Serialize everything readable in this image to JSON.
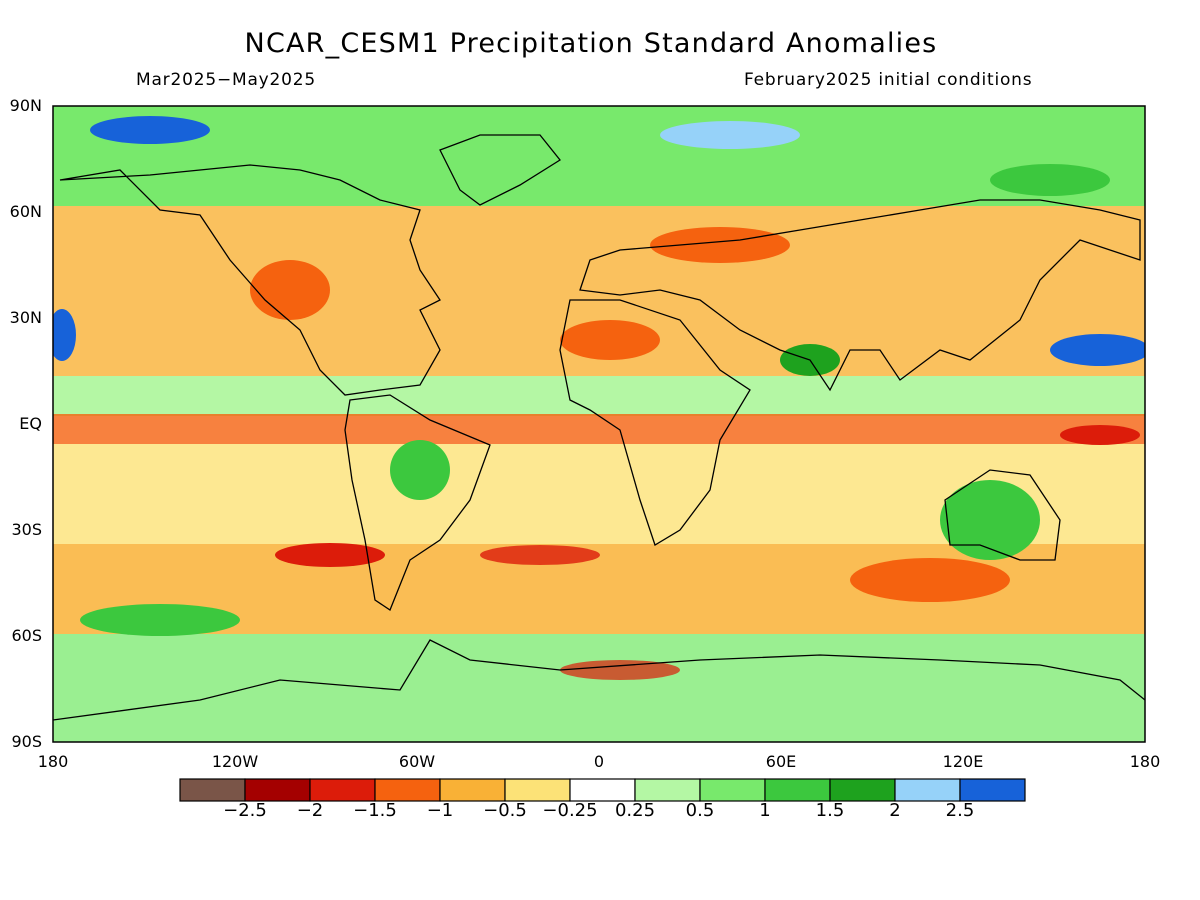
{
  "title": "NCAR_CESM1 Precipitation Standard Anomalies",
  "period": "Mar2025−May2025",
  "initial_conditions": "February2025 initial conditions",
  "lat_labels": [
    "90N",
    "60N",
    "30N",
    "EQ",
    "30S",
    "60S",
    "90S"
  ],
  "lon_labels": [
    "180",
    "120W",
    "60W",
    "0",
    "60E",
    "120E",
    "180"
  ],
  "legend": {
    "colors": [
      "#7a5548",
      "#a40000",
      "#dc1c0a",
      "#f5620f",
      "#f9b136",
      "#fce277",
      "#ffffff",
      "#b4f7a4",
      "#78e96c",
      "#3cc83e",
      "#1ea21e",
      "#96d2f9",
      "#1762d9"
    ],
    "labels": [
      "−2.5",
      "−2",
      "−1.5",
      "−1",
      "−0.5",
      "−0.25",
      "0.25",
      "0.5",
      "1",
      "1.5",
      "2",
      "2.5"
    ]
  }
}
